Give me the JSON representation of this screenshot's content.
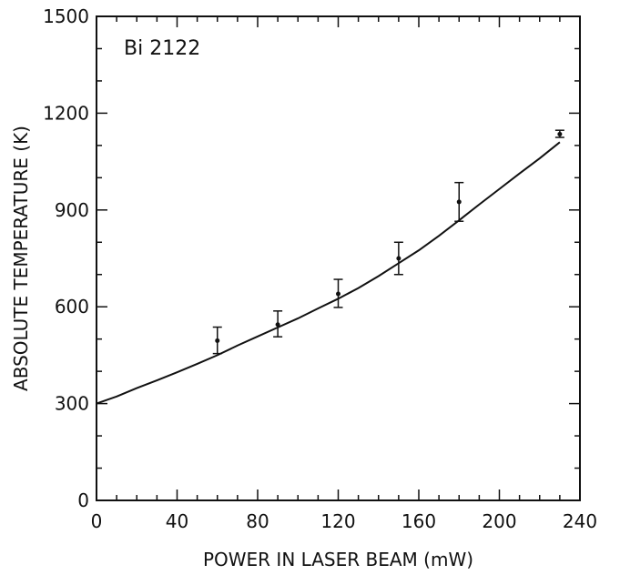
{
  "chart_data": {
    "type": "line",
    "title": "",
    "annotation": "Bi 2122",
    "xlabel": "POWER IN LASER BEAM (mW)",
    "ylabel": "ABSOLUTE TEMPERATURE (K)",
    "xlim": [
      0,
      240
    ],
    "ylim": [
      0,
      1500
    ],
    "x_ticks": [
      0,
      40,
      80,
      120,
      160,
      200,
      240
    ],
    "y_ticks": [
      0,
      300,
      600,
      900,
      1200,
      1500
    ],
    "x_tick_labels": [
      "0",
      "40",
      "80",
      "120",
      "160",
      "200",
      "240"
    ],
    "y_tick_labels": [
      "0",
      "300",
      "600",
      "900",
      "1200",
      "1500"
    ],
    "x_minor_step": 10,
    "y_minor_step": 100,
    "grid": false,
    "legend": "none",
    "line_color": "#111111",
    "curve": {
      "x": [
        0,
        10,
        20,
        30,
        40,
        50,
        60,
        70,
        80,
        90,
        100,
        110,
        120,
        130,
        140,
        150,
        160,
        170,
        180,
        190,
        200,
        210,
        220,
        230
      ],
      "y": [
        300,
        322,
        348,
        372,
        397,
        423,
        450,
        480,
        508,
        536,
        564,
        595,
        625,
        658,
        695,
        735,
        775,
        820,
        868,
        917,
        965,
        1013,
        1060,
        1110
      ]
    },
    "points": [
      {
        "x": 60,
        "y": 495,
        "err_low": 455,
        "err_high": 537
      },
      {
        "x": 90,
        "y": 545,
        "err_low": 507,
        "err_high": 587
      },
      {
        "x": 120,
        "y": 640,
        "err_low": 598,
        "err_high": 685
      },
      {
        "x": 150,
        "y": 750,
        "err_low": 700,
        "err_high": 800
      },
      {
        "x": 180,
        "y": 925,
        "err_low": 865,
        "err_high": 985
      },
      {
        "x": 230,
        "y": 1135,
        "err_low": 1125,
        "err_high": 1147
      }
    ]
  }
}
